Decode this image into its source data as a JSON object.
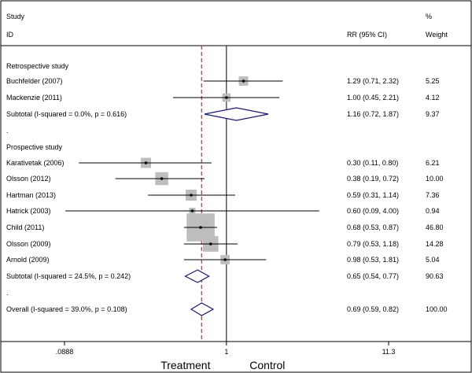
{
  "chart_data": {
    "type": "forest",
    "scale": "log",
    "xlim": [
      0.0888,
      11.3
    ],
    "null_value": 1,
    "overall_estimate": 0.69,
    "header": {
      "study_col": [
        "Study",
        "ID"
      ],
      "rr_col": "RR (95% CI)",
      "weight_col": [
        "%",
        "Weight"
      ]
    },
    "rows": [
      {
        "kind": "group",
        "label": "Retrospective study"
      },
      {
        "kind": "study",
        "label": "Buchfelder (2007)",
        "rr": 1.29,
        "lo": 0.71,
        "hi": 2.32,
        "text": "1.29 (0.71, 2.32)",
        "weight": 5.25,
        "weight_text": "5.25"
      },
      {
        "kind": "study",
        "label": "Mackenzie (2011)",
        "rr": 1.0,
        "lo": 0.45,
        "hi": 2.21,
        "text": "1.00 (0.45, 2.21)",
        "weight": 4.12,
        "weight_text": "4.12"
      },
      {
        "kind": "subtotal",
        "label": "Subtotal  (I-squared = 0.0%, p = 0.616)",
        "rr": 1.16,
        "lo": 0.72,
        "hi": 1.87,
        "text": "1.16 (0.72, 1.87)",
        "weight_text": "9.37"
      },
      {
        "kind": "dot",
        "label": "."
      },
      {
        "kind": "group",
        "label": "Prospective study"
      },
      {
        "kind": "study",
        "label": "Karativetak (2006)",
        "rr": 0.3,
        "lo": 0.11,
        "hi": 0.8,
        "text": "0.30 (0.11, 0.80)",
        "weight": 6.21,
        "weight_text": "6.21"
      },
      {
        "kind": "study",
        "label": "Olsson (2012)",
        "rr": 0.38,
        "lo": 0.19,
        "hi": 0.72,
        "text": "0.38 (0.19, 0.72)",
        "weight": 10.0,
        "weight_text": "10.00"
      },
      {
        "kind": "study",
        "label": "Hartman (2013)",
        "rr": 0.59,
        "lo": 0.31,
        "hi": 1.14,
        "text": "0.59 (0.31, 1.14)",
        "weight": 7.36,
        "weight_text": "7.36"
      },
      {
        "kind": "study",
        "label": "Hatrick (2003)",
        "rr": 0.6,
        "lo": 0.09,
        "hi": 4.0,
        "text": "0.60 (0.09, 4.00)",
        "weight": 0.94,
        "weight_text": "0.94"
      },
      {
        "kind": "study",
        "label": "Child (2011)",
        "rr": 0.68,
        "lo": 0.53,
        "hi": 0.87,
        "text": "0.68 (0.53, 0.87)",
        "weight": 46.8,
        "weight_text": "46.80"
      },
      {
        "kind": "study",
        "label": "Olsson (2009)",
        "rr": 0.79,
        "lo": 0.53,
        "hi": 1.18,
        "text": "0.79 (0.53, 1.18)",
        "weight": 14.28,
        "weight_text": "14.28"
      },
      {
        "kind": "study",
        "label": "Arnold (2009)",
        "rr": 0.98,
        "lo": 0.53,
        "hi": 1.81,
        "text": "0.98 (0.53, 1.81)",
        "weight": 5.04,
        "weight_text": "5.04"
      },
      {
        "kind": "subtotal",
        "label": "Subtotal  (I-squared = 24.5%, p = 0.242)",
        "rr": 0.65,
        "lo": 0.54,
        "hi": 0.77,
        "text": "0.65 (0.54, 0.77)",
        "weight_text": "90.63"
      },
      {
        "kind": "dot",
        "label": "."
      },
      {
        "kind": "overall",
        "label": "Overall  (I-squared = 39.0%, p = 0.108)",
        "rr": 0.69,
        "lo": 0.59,
        "hi": 0.82,
        "text": "0.69 (0.59, 0.82)",
        "weight_text": "100.00"
      }
    ],
    "ticks": [
      {
        "value": 0.0888,
        "label": ".0888"
      },
      {
        "value": 1,
        "label": "1"
      },
      {
        "value": 11.3,
        "label": "11.3"
      }
    ],
    "xlabels": {
      "left": "Treatment",
      "right": "Control"
    },
    "colors": {
      "box": "#bdbdbd",
      "diamond": "#1a1a6e",
      "dashed": "#b03030",
      "line": "#000000"
    }
  }
}
